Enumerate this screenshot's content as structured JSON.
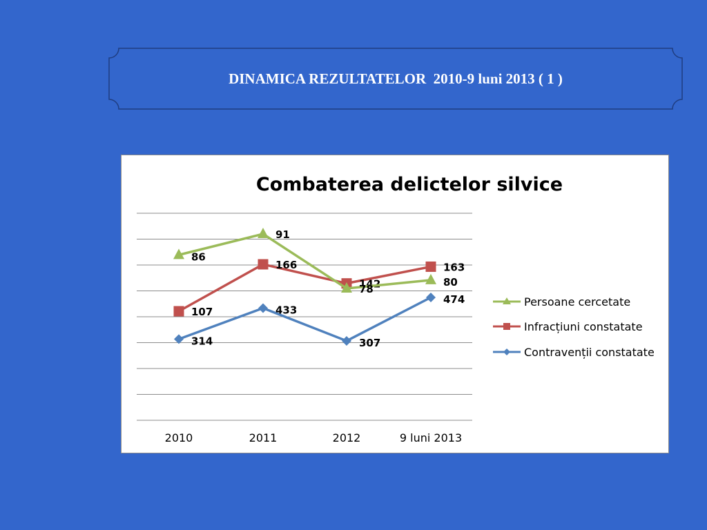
{
  "slide": {
    "title": "DINAMICA REZULTATELOR  2010-9 luni 2013 ( 1 )"
  },
  "colors": {
    "background": "#3366cc",
    "persoane": "#9bbb59",
    "infractiuni": "#c0504d",
    "contraventii": "#4f81bd",
    "gridline": "#8c8c8c"
  },
  "chart_data": {
    "type": "line",
    "title": "Combaterea delictelor silvice",
    "xlabel": "",
    "ylabel": "",
    "categories": [
      "2010",
      "2011",
      "2012",
      "9 luni 2013"
    ],
    "series": [
      {
        "name": "Persoane cercetate",
        "values": [
          86,
          91,
          78,
          80
        ],
        "marker": "triangle",
        "color": "#9bbb59"
      },
      {
        "name": "Infracțiuni constatate",
        "values": [
          107,
          166,
          142,
          163
        ],
        "marker": "square",
        "color": "#c0504d"
      },
      {
        "name": "Contravenții constatate",
        "values": [
          314,
          433,
          307,
          474
        ],
        "marker": "diamond",
        "color": "#4f81bd"
      }
    ],
    "grid": true,
    "legend_position": "right"
  }
}
